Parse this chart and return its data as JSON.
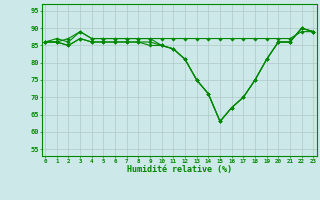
{
  "title": "",
  "xlabel": "Humidité relative (%)",
  "ylabel": "",
  "x_ticks": [
    0,
    1,
    2,
    3,
    4,
    5,
    6,
    7,
    8,
    9,
    10,
    11,
    12,
    13,
    14,
    15,
    16,
    17,
    18,
    19,
    20,
    21,
    22,
    23
  ],
  "y_ticks": [
    55,
    60,
    65,
    70,
    75,
    80,
    85,
    90,
    95
  ],
  "xlim": [
    -0.3,
    23.3
  ],
  "ylim": [
    53,
    97
  ],
  "background_color": "#cce8e8",
  "grid_color": "#b0c8c8",
  "line_color": "#008800",
  "series": [
    [
      86,
      86,
      87,
      89,
      87,
      87,
      87,
      87,
      87,
      87,
      87,
      87,
      87,
      87,
      87,
      87,
      87,
      87,
      87,
      87,
      87,
      87,
      89,
      89
    ],
    [
      86,
      87,
      86,
      89,
      87,
      87,
      87,
      87,
      87,
      87,
      85,
      84,
      81,
      75,
      71,
      63,
      67,
      70,
      75,
      81,
      86,
      86,
      90,
      89
    ],
    [
      86,
      86,
      85,
      87,
      86,
      86,
      86,
      86,
      86,
      86,
      85,
      84,
      81,
      75,
      71,
      63,
      67,
      70,
      75,
      81,
      86,
      86,
      90,
      89
    ],
    [
      86,
      86,
      85,
      87,
      86,
      86,
      86,
      86,
      86,
      85,
      85,
      84,
      81,
      75,
      71,
      63,
      67,
      70,
      75,
      81,
      86,
      86,
      90,
      89
    ]
  ]
}
